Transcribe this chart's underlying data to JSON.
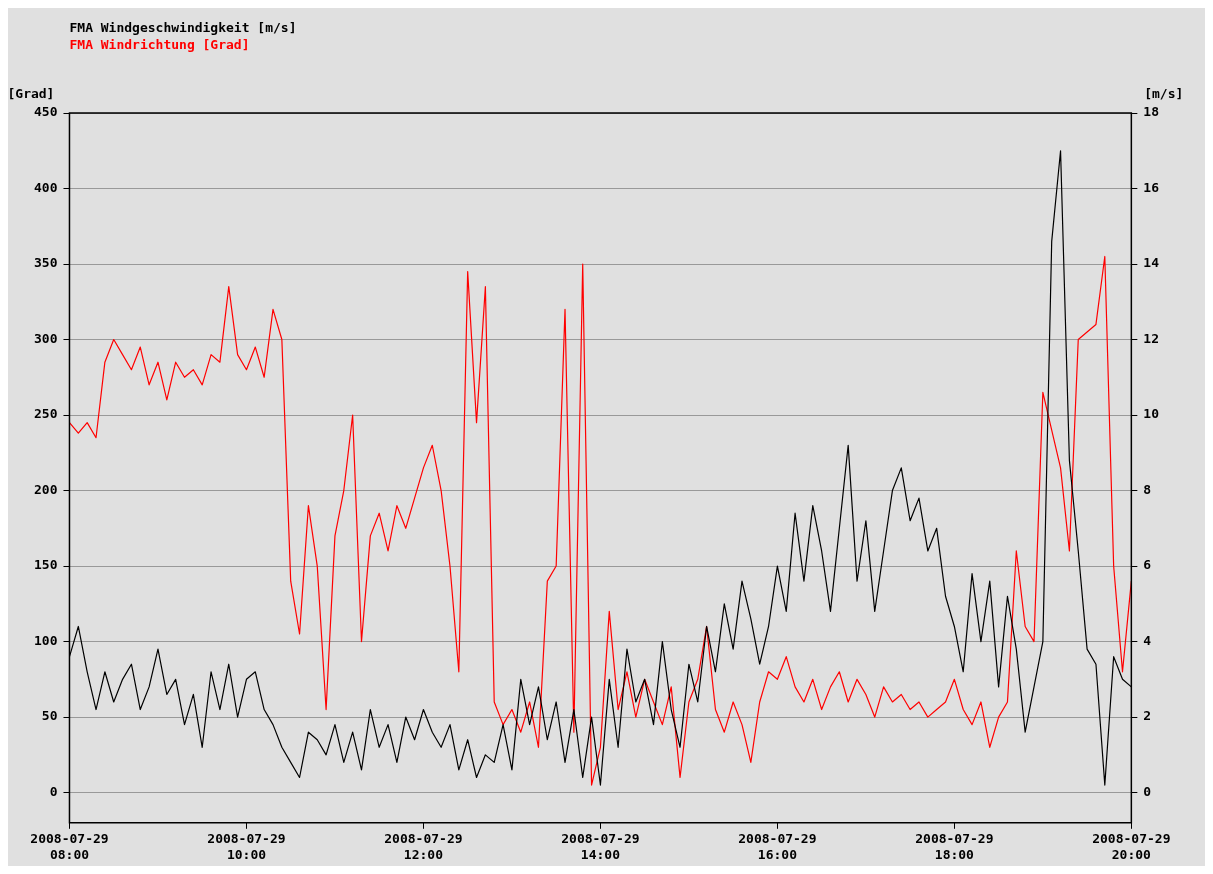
{
  "chart_data": {
    "type": "line",
    "xlim": [
      "2008-07-29T08:00",
      "2008-07-29T20:00"
    ],
    "xticks": [
      {
        "value": "2008-07-29T08:00",
        "label": "2008-07-29 08:00"
      },
      {
        "value": "2008-07-29T10:00",
        "label": "2008-07-29 10:00"
      },
      {
        "value": "2008-07-29T12:00",
        "label": "2008-07-29 12:00"
      },
      {
        "value": "2008-07-29T14:00",
        "label": "2008-07-29 14:00"
      },
      {
        "value": "2008-07-29T16:00",
        "label": "2008-07-29 16:00"
      },
      {
        "value": "2008-07-29T18:00",
        "label": "2008-07-29 18:00"
      },
      {
        "value": "2008-07-29T20:00",
        "label": "2008-07-29 20:00"
      }
    ],
    "ylabel": "[Grad]",
    "y2label": "[m/s]",
    "ylim": [
      -20,
      450
    ],
    "yticks": [
      0,
      50,
      100,
      150,
      200,
      250,
      300,
      350,
      400,
      450
    ],
    "y2lim": [
      -0.8,
      18
    ],
    "y2ticks": [
      0,
      2,
      4,
      6,
      8,
      10,
      12,
      14,
      16,
      18
    ],
    "grid": "y",
    "legend": "top left",
    "marker": "none",
    "line_style": "solid",
    "x": [
      "2008-07-29T08:00",
      "2008-07-29T08:06",
      "2008-07-29T08:12",
      "2008-07-29T08:18",
      "2008-07-29T08:24",
      "2008-07-29T08:30",
      "2008-07-29T08:36",
      "2008-07-29T08:42",
      "2008-07-29T08:48",
      "2008-07-29T08:54",
      "2008-07-29T09:00",
      "2008-07-29T09:06",
      "2008-07-29T09:12",
      "2008-07-29T09:18",
      "2008-07-29T09:24",
      "2008-07-29T09:30",
      "2008-07-29T09:36",
      "2008-07-29T09:42",
      "2008-07-29T09:48",
      "2008-07-29T09:54",
      "2008-07-29T10:00",
      "2008-07-29T10:06",
      "2008-07-29T10:12",
      "2008-07-29T10:18",
      "2008-07-29T10:24",
      "2008-07-29T10:30",
      "2008-07-29T10:36",
      "2008-07-29T10:42",
      "2008-07-29T10:48",
      "2008-07-29T10:54",
      "2008-07-29T11:00",
      "2008-07-29T11:06",
      "2008-07-29T11:12",
      "2008-07-29T11:18",
      "2008-07-29T11:24",
      "2008-07-29T11:30",
      "2008-07-29T11:36",
      "2008-07-29T11:42",
      "2008-07-29T11:48",
      "2008-07-29T11:54",
      "2008-07-29T12:00",
      "2008-07-29T12:06",
      "2008-07-29T12:12",
      "2008-07-29T12:18",
      "2008-07-29T12:24",
      "2008-07-29T12:30",
      "2008-07-29T12:36",
      "2008-07-29T12:42",
      "2008-07-29T12:48",
      "2008-07-29T12:54",
      "2008-07-29T13:00",
      "2008-07-29T13:06",
      "2008-07-29T13:12",
      "2008-07-29T13:18",
      "2008-07-29T13:24",
      "2008-07-29T13:30",
      "2008-07-29T13:36",
      "2008-07-29T13:42",
      "2008-07-29T13:48",
      "2008-07-29T13:54",
      "2008-07-29T14:00",
      "2008-07-29T14:06",
      "2008-07-29T14:12",
      "2008-07-29T14:18",
      "2008-07-29T14:24",
      "2008-07-29T14:30",
      "2008-07-29T14:36",
      "2008-07-29T14:42",
      "2008-07-29T14:48",
      "2008-07-29T14:54",
      "2008-07-29T15:00",
      "2008-07-29T15:06",
      "2008-07-29T15:12",
      "2008-07-29T15:18",
      "2008-07-29T15:24",
      "2008-07-29T15:30",
      "2008-07-29T15:36",
      "2008-07-29T15:42",
      "2008-07-29T15:48",
      "2008-07-29T15:54",
      "2008-07-29T16:00",
      "2008-07-29T16:06",
      "2008-07-29T16:12",
      "2008-07-29T16:18",
      "2008-07-29T16:24",
      "2008-07-29T16:30",
      "2008-07-29T16:36",
      "2008-07-29T16:42",
      "2008-07-29T16:48",
      "2008-07-29T16:54",
      "2008-07-29T17:00",
      "2008-07-29T17:06",
      "2008-07-29T17:12",
      "2008-07-29T17:18",
      "2008-07-29T17:24",
      "2008-07-29T17:30",
      "2008-07-29T17:36",
      "2008-07-29T17:42",
      "2008-07-29T17:48",
      "2008-07-29T17:54",
      "2008-07-29T18:00",
      "2008-07-29T18:06",
      "2008-07-29T18:12",
      "2008-07-29T18:18",
      "2008-07-29T18:24",
      "2008-07-29T18:30",
      "2008-07-29T18:36",
      "2008-07-29T18:42",
      "2008-07-29T18:48",
      "2008-07-29T18:54",
      "2008-07-29T19:00",
      "2008-07-29T19:06",
      "2008-07-29T19:12",
      "2008-07-29T19:18",
      "2008-07-29T19:24",
      "2008-07-29T19:30",
      "2008-07-29T19:36",
      "2008-07-29T19:42",
      "2008-07-29T19:48",
      "2008-07-29T19:54",
      "2008-07-29T20:00"
    ],
    "series": [
      {
        "name": "FMA Windgeschwindigkeit [m/s]",
        "color": "#000000",
        "axis": "y2",
        "values": [
          3.6,
          4.4,
          3.2,
          2.2,
          3.2,
          2.4,
          3.0,
          3.4,
          2.2,
          2.8,
          3.8,
          2.6,
          3.0,
          1.8,
          2.6,
          1.2,
          3.2,
          2.2,
          3.4,
          2.0,
          3.0,
          3.2,
          2.2,
          1.8,
          1.2,
          0.8,
          0.4,
          1.6,
          1.4,
          1.0,
          1.8,
          0.8,
          1.6,
          0.6,
          2.2,
          1.2,
          1.8,
          0.8,
          2.0,
          1.4,
          2.2,
          1.6,
          1.2,
          1.8,
          0.6,
          1.4,
          0.4,
          1.0,
          0.8,
          1.8,
          0.6,
          3.0,
          1.8,
          2.8,
          1.4,
          2.4,
          0.8,
          2.2,
          0.4,
          2.0,
          0.2,
          3.0,
          1.2,
          3.8,
          2.4,
          3.0,
          1.8,
          4.0,
          2.2,
          1.2,
          3.4,
          2.4,
          4.4,
          3.2,
          5.0,
          3.8,
          5.6,
          4.6,
          3.4,
          4.4,
          6.0,
          4.8,
          7.4,
          5.6,
          7.6,
          6.4,
          4.8,
          7.0,
          9.2,
          5.6,
          7.2,
          4.8,
          6.4,
          8.0,
          8.6,
          7.2,
          7.8,
          6.4,
          7.0,
          5.2,
          4.4,
          3.2,
          5.8,
          4.0,
          5.6,
          2.8,
          5.2,
          3.8,
          1.6,
          2.8,
          4.0,
          14.6,
          17.0,
          8.8,
          6.4,
          3.8,
          3.4,
          0.2,
          3.6,
          3.0,
          2.8
        ]
      },
      {
        "name": "FMA Windrichtung [Grad]",
        "color": "#ff0000",
        "values": [
          245,
          238,
          245,
          235,
          285,
          300,
          290,
          280,
          295,
          270,
          285,
          260,
          285,
          275,
          280,
          270,
          290,
          285,
          335,
          290,
          280,
          295,
          275,
          320,
          300,
          140,
          105,
          190,
          150,
          55,
          170,
          200,
          250,
          100,
          170,
          185,
          160,
          190,
          175,
          195,
          215,
          230,
          200,
          150,
          80,
          345,
          245,
          335,
          60,
          45,
          55,
          40,
          60,
          30,
          140,
          150,
          320,
          40,
          350,
          5,
          30,
          120,
          55,
          80,
          50,
          75,
          60,
          45,
          70,
          10,
          60,
          75,
          110,
          55,
          40,
          60,
          45,
          20,
          60,
          80,
          75,
          90,
          70,
          60,
          75,
          55,
          70,
          80,
          60,
          75,
          65,
          50,
          70,
          60,
          65,
          55,
          60,
          50,
          55,
          60,
          75,
          55,
          45,
          60,
          30,
          50,
          60,
          160,
          110,
          100,
          265,
          240,
          215,
          160,
          300,
          305,
          310,
          355,
          150,
          80,
          140
        ]
      }
    ]
  }
}
